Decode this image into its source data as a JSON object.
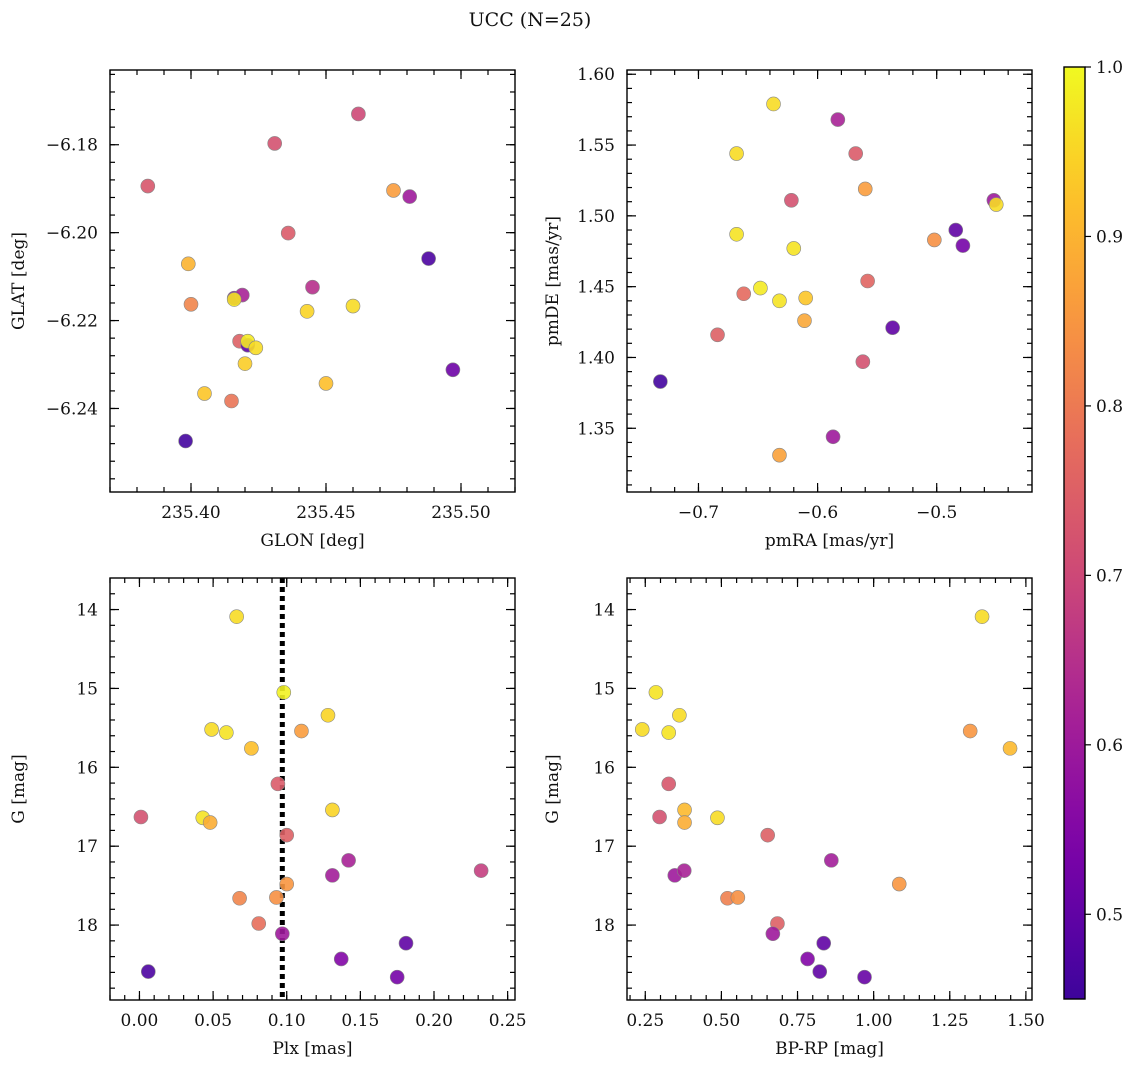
{
  "title": "UCC (N=25)",
  "colorbar": {
    "min": 0.45,
    "max": 1.0,
    "ticks": [
      0.5,
      0.6,
      0.7,
      0.8,
      0.9,
      1.0
    ],
    "tick_labels": [
      "0.5",
      "0.6",
      "0.7",
      "0.8",
      "0.9",
      "1.0"
    ],
    "colormap": "plasma"
  },
  "chart_data": [
    {
      "type": "scatter",
      "xlabel": "GLON [deg]",
      "ylabel": "GLAT [deg]",
      "xlim": [
        235.37,
        235.52
      ],
      "ylim": [
        -6.259,
        -6.163
      ],
      "y_inverted": false,
      "xticks": [
        235.4,
        235.45,
        235.5
      ],
      "xtick_labels": [
        "235.40",
        "235.45",
        "235.50"
      ],
      "yticks": [
        -6.24,
        -6.22,
        -6.2,
        -6.18
      ],
      "ytick_labels": [
        "−6.24",
        "−6.22",
        "−6.20",
        "−6.18"
      ],
      "points": [
        {
          "x": 235.384,
          "y": -6.1894,
          "c": 0.73
        },
        {
          "x": 235.431,
          "y": -6.1797,
          "c": 0.72
        },
        {
          "x": 235.462,
          "y": -6.173,
          "c": 0.7
        },
        {
          "x": 235.475,
          "y": -6.1904,
          "c": 0.86
        },
        {
          "x": 235.481,
          "y": -6.1918,
          "c": 0.6
        },
        {
          "x": 235.436,
          "y": -6.2001,
          "c": 0.74
        },
        {
          "x": 235.399,
          "y": -6.2071,
          "c": 0.9
        },
        {
          "x": 235.4,
          "y": -6.2163,
          "c": 0.82
        },
        {
          "x": 235.488,
          "y": -6.2059,
          "c": 0.47
        },
        {
          "x": 235.416,
          "y": -6.2149,
          "c": 0.55
        },
        {
          "x": 235.419,
          "y": -6.2142,
          "c": 0.62
        },
        {
          "x": 235.416,
          "y": -6.2152,
          "c": 0.97
        },
        {
          "x": 235.445,
          "y": -6.2124,
          "c": 0.65
        },
        {
          "x": 235.443,
          "y": -6.2179,
          "c": 0.95
        },
        {
          "x": 235.46,
          "y": -6.2167,
          "c": 0.96
        },
        {
          "x": 235.418,
          "y": -6.2247,
          "c": 0.75
        },
        {
          "x": 235.421,
          "y": -6.2256,
          "c": 0.5
        },
        {
          "x": 235.421,
          "y": -6.2247,
          "c": 0.98
        },
        {
          "x": 235.424,
          "y": -6.2262,
          "c": 0.96
        },
        {
          "x": 235.42,
          "y": -6.2298,
          "c": 0.94
        },
        {
          "x": 235.497,
          "y": -6.2312,
          "c": 0.52
        },
        {
          "x": 235.45,
          "y": -6.2343,
          "c": 0.92
        },
        {
          "x": 235.405,
          "y": -6.2366,
          "c": 0.93
        },
        {
          "x": 235.415,
          "y": -6.2383,
          "c": 0.79
        },
        {
          "x": 235.398,
          "y": -6.2474,
          "c": 0.46
        }
      ]
    },
    {
      "type": "scatter",
      "xlabel": "pmRA [mas/yr]",
      "ylabel": "pmDE [mas/yr]",
      "xlim": [
        -0.76,
        -0.42
      ],
      "ylim": [
        1.305,
        1.603
      ],
      "y_inverted": false,
      "xticks": [
        -0.7,
        -0.6,
        -0.5
      ],
      "xtick_labels": [
        "−0.7",
        "−0.6",
        "−0.5"
      ],
      "yticks": [
        1.35,
        1.4,
        1.45,
        1.5,
        1.55,
        1.6
      ],
      "ytick_labels": [
        "1.35",
        "1.40",
        "1.45",
        "1.50",
        "1.55",
        "1.60"
      ],
      "points": [
        {
          "x": -0.637,
          "y": 1.579,
          "c": 0.96
        },
        {
          "x": -0.583,
          "y": 1.568,
          "c": 0.62
        },
        {
          "x": -0.568,
          "y": 1.544,
          "c": 0.74
        },
        {
          "x": -0.668,
          "y": 1.544,
          "c": 0.96
        },
        {
          "x": -0.56,
          "y": 1.519,
          "c": 0.86
        },
        {
          "x": -0.622,
          "y": 1.511,
          "c": 0.72
        },
        {
          "x": -0.452,
          "y": 1.511,
          "c": 0.6
        },
        {
          "x": -0.45,
          "y": 1.508,
          "c": 0.96
        },
        {
          "x": -0.668,
          "y": 1.487,
          "c": 0.97
        },
        {
          "x": -0.484,
          "y": 1.49,
          "c": 0.5
        },
        {
          "x": -0.502,
          "y": 1.483,
          "c": 0.84
        },
        {
          "x": -0.478,
          "y": 1.479,
          "c": 0.53
        },
        {
          "x": -0.62,
          "y": 1.477,
          "c": 0.97
        },
        {
          "x": -0.558,
          "y": 1.454,
          "c": 0.76
        },
        {
          "x": -0.648,
          "y": 1.449,
          "c": 0.98
        },
        {
          "x": -0.662,
          "y": 1.445,
          "c": 0.77
        },
        {
          "x": -0.61,
          "y": 1.442,
          "c": 0.93
        },
        {
          "x": -0.632,
          "y": 1.44,
          "c": 0.97
        },
        {
          "x": -0.611,
          "y": 1.426,
          "c": 0.88
        },
        {
          "x": -0.537,
          "y": 1.421,
          "c": 0.5
        },
        {
          "x": -0.684,
          "y": 1.416,
          "c": 0.75
        },
        {
          "x": -0.562,
          "y": 1.397,
          "c": 0.72
        },
        {
          "x": -0.732,
          "y": 1.383,
          "c": 0.46
        },
        {
          "x": -0.587,
          "y": 1.344,
          "c": 0.6
        },
        {
          "x": -0.632,
          "y": 1.331,
          "c": 0.87
        }
      ]
    },
    {
      "type": "scatter",
      "xlabel": "Plx [mas]",
      "ylabel": "G [mag]",
      "xlim": [
        -0.02,
        0.255
      ],
      "ylim": [
        13.6,
        18.95
      ],
      "y_inverted": true,
      "xticks": [
        0.0,
        0.05,
        0.1,
        0.15,
        0.2,
        0.25
      ],
      "xtick_labels": [
        "0.00",
        "0.05",
        "0.10",
        "0.15",
        "0.20",
        "0.25"
      ],
      "yticks": [
        14,
        15,
        16,
        17,
        18
      ],
      "ytick_labels": [
        "14",
        "15",
        "16",
        "17",
        "18"
      ],
      "vline": 0.097,
      "points": [
        {
          "x": 0.066,
          "y": 14.09,
          "c": 0.96
        },
        {
          "x": 0.098,
          "y": 15.05,
          "c": 0.99
        },
        {
          "x": 0.128,
          "y": 15.34,
          "c": 0.95
        },
        {
          "x": 0.049,
          "y": 15.52,
          "c": 0.96
        },
        {
          "x": 0.059,
          "y": 15.56,
          "c": 0.97
        },
        {
          "x": 0.11,
          "y": 15.54,
          "c": 0.86
        },
        {
          "x": 0.076,
          "y": 15.76,
          "c": 0.92
        },
        {
          "x": 0.094,
          "y": 16.21,
          "c": 0.74
        },
        {
          "x": 0.131,
          "y": 16.54,
          "c": 0.95
        },
        {
          "x": 0.001,
          "y": 16.63,
          "c": 0.72
        },
        {
          "x": 0.043,
          "y": 16.64,
          "c": 0.97
        },
        {
          "x": 0.048,
          "y": 16.7,
          "c": 0.89
        },
        {
          "x": 0.1,
          "y": 16.86,
          "c": 0.75
        },
        {
          "x": 0.142,
          "y": 17.18,
          "c": 0.62
        },
        {
          "x": 0.131,
          "y": 17.37,
          "c": 0.61
        },
        {
          "x": 0.232,
          "y": 17.31,
          "c": 0.68
        },
        {
          "x": 0.1,
          "y": 17.48,
          "c": 0.85
        },
        {
          "x": 0.068,
          "y": 17.66,
          "c": 0.82
        },
        {
          "x": 0.093,
          "y": 17.65,
          "c": 0.84
        },
        {
          "x": 0.081,
          "y": 17.98,
          "c": 0.78
        },
        {
          "x": 0.097,
          "y": 18.11,
          "c": 0.6
        },
        {
          "x": 0.181,
          "y": 18.23,
          "c": 0.5
        },
        {
          "x": 0.137,
          "y": 18.43,
          "c": 0.55
        },
        {
          "x": 0.006,
          "y": 18.59,
          "c": 0.47
        },
        {
          "x": 0.175,
          "y": 18.66,
          "c": 0.53
        }
      ]
    },
    {
      "type": "scatter",
      "xlabel": "BP-RP [mag]",
      "ylabel": "G [mag]",
      "xlim": [
        0.19,
        1.52
      ],
      "ylim": [
        13.6,
        18.95
      ],
      "y_inverted": true,
      "xticks": [
        0.25,
        0.5,
        0.75,
        1.0,
        1.25,
        1.5
      ],
      "xtick_labels": [
        "0.25",
        "0.50",
        "0.75",
        "1.00",
        "1.25",
        "1.50"
      ],
      "yticks": [
        14,
        15,
        16,
        17,
        18
      ],
      "ytick_labels": [
        "14",
        "15",
        "16",
        "17",
        "18"
      ],
      "points": [
        {
          "x": 1.356,
          "y": 14.09,
          "c": 0.96
        },
        {
          "x": 0.285,
          "y": 15.05,
          "c": 0.97
        },
        {
          "x": 0.362,
          "y": 15.34,
          "c": 0.96
        },
        {
          "x": 0.24,
          "y": 15.52,
          "c": 0.96
        },
        {
          "x": 0.327,
          "y": 15.56,
          "c": 0.97
        },
        {
          "x": 1.317,
          "y": 15.54,
          "c": 0.85
        },
        {
          "x": 1.448,
          "y": 15.76,
          "c": 0.91
        },
        {
          "x": 0.327,
          "y": 16.21,
          "c": 0.73
        },
        {
          "x": 0.379,
          "y": 16.54,
          "c": 0.91
        },
        {
          "x": 0.297,
          "y": 16.63,
          "c": 0.72
        },
        {
          "x": 0.487,
          "y": 16.64,
          "c": 0.96
        },
        {
          "x": 0.379,
          "y": 16.7,
          "c": 0.89
        },
        {
          "x": 0.652,
          "y": 16.86,
          "c": 0.75
        },
        {
          "x": 0.861,
          "y": 17.18,
          "c": 0.61
        },
        {
          "x": 0.347,
          "y": 17.37,
          "c": 0.6
        },
        {
          "x": 0.378,
          "y": 17.31,
          "c": 0.62
        },
        {
          "x": 1.084,
          "y": 17.48,
          "c": 0.85
        },
        {
          "x": 0.52,
          "y": 17.66,
          "c": 0.81
        },
        {
          "x": 0.554,
          "y": 17.65,
          "c": 0.84
        },
        {
          "x": 0.684,
          "y": 17.98,
          "c": 0.75
        },
        {
          "x": 0.669,
          "y": 18.11,
          "c": 0.6
        },
        {
          "x": 0.836,
          "y": 18.23,
          "c": 0.5
        },
        {
          "x": 0.783,
          "y": 18.43,
          "c": 0.55
        },
        {
          "x": 0.823,
          "y": 18.59,
          "c": 0.5
        },
        {
          "x": 0.97,
          "y": 18.66,
          "c": 0.51
        }
      ]
    }
  ]
}
